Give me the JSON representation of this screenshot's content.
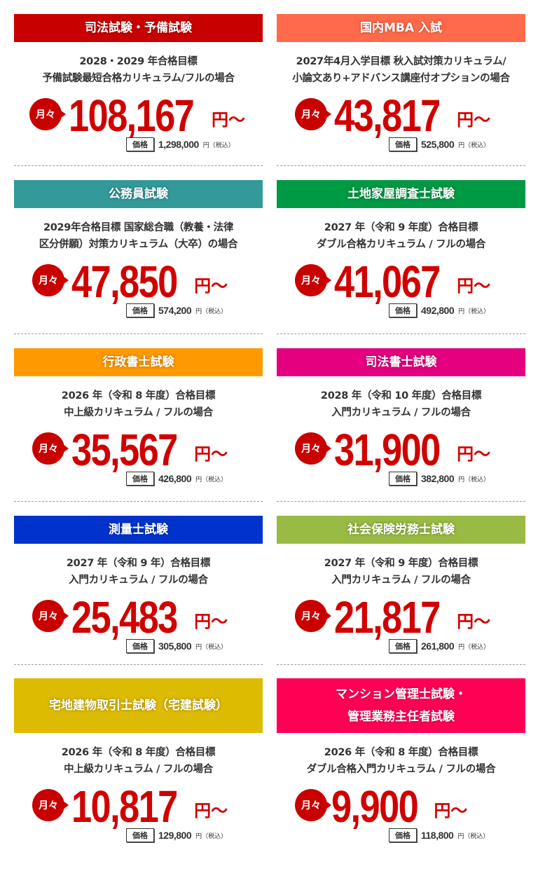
{
  "badge_label": "月々",
  "price_tag_label": "価格",
  "yen_suffix": "円～",
  "tax_suffix": "円（税込）",
  "courses": [
    {
      "title": "司法試験・予備試験",
      "color": "#c80000",
      "desc": [
        "2028・2029 年合格目標",
        "予備試験最短合格カリキュラム/フルの場合"
      ],
      "monthly": "108,167",
      "price": "1,298,000"
    },
    {
      "title": "国内MBA 入試",
      "color": "#ff6a4a",
      "desc": [
        "2027年4月入学目標 秋入試対策カリキュラム/",
        "小論文あり+アドバンス講座付オプションの場合"
      ],
      "monthly": "43,817",
      "price": "525,800"
    },
    {
      "title": "公務員試験",
      "color": "#339999",
      "desc": [
        "2029年合格目標 国家総合職（教養・法律",
        "区分併願）対策カリキュラム（大卒）の場合"
      ],
      "monthly": "47,850",
      "price": "574,200"
    },
    {
      "title": "土地家屋調査士試験",
      "color": "#009944",
      "desc": [
        "2027 年（令和 9 年度）合格目標",
        "ダブル合格カリキュラム / フルの場合"
      ],
      "monthly": "41,067",
      "price": "492,800"
    },
    {
      "title": "行政書士試験",
      "color": "#ff9900",
      "desc": [
        "2026 年（令和 8 年度）合格目標",
        "中上級カリキュラム / フルの場合"
      ],
      "monthly": "35,567",
      "price": "426,800"
    },
    {
      "title": "司法書士試験",
      "color": "#e4007f",
      "desc": [
        "2028 年（令和 10 年度）合格目標",
        "入門カリキュラム / フルの場合"
      ],
      "monthly": "31,900",
      "price": "382,800"
    },
    {
      "title": "測量士試験",
      "color": "#0033cc",
      "desc": [
        "2027 年（令和 9 年）合格目標",
        "入門カリキュラム / フルの場合"
      ],
      "monthly": "25,483",
      "price": "305,800"
    },
    {
      "title": "社会保険労務士試験",
      "color": "#99bb44",
      "desc": [
        "2027 年（令和 9 年度）合格目標",
        "入門カリキュラム / フルの場合"
      ],
      "monthly": "21,817",
      "price": "261,800"
    },
    {
      "title": "宅地建物取引士試験（宅建試験）",
      "color": "#ddbb00",
      "desc": [
        "2026 年（令和 8 年度）合格目標",
        "中上級カリキュラム / フルの場合"
      ],
      "monthly": "10,817",
      "price": "129,800"
    },
    {
      "title": "マンション管理士試験・\n管理業務主任者試験",
      "color": "#ff0055",
      "desc": [
        "2026 年（令和 8 年度）合格目標",
        "ダブル合格入門カリキュラム / フルの場合"
      ],
      "monthly": "9,900",
      "price": "118,800"
    }
  ]
}
